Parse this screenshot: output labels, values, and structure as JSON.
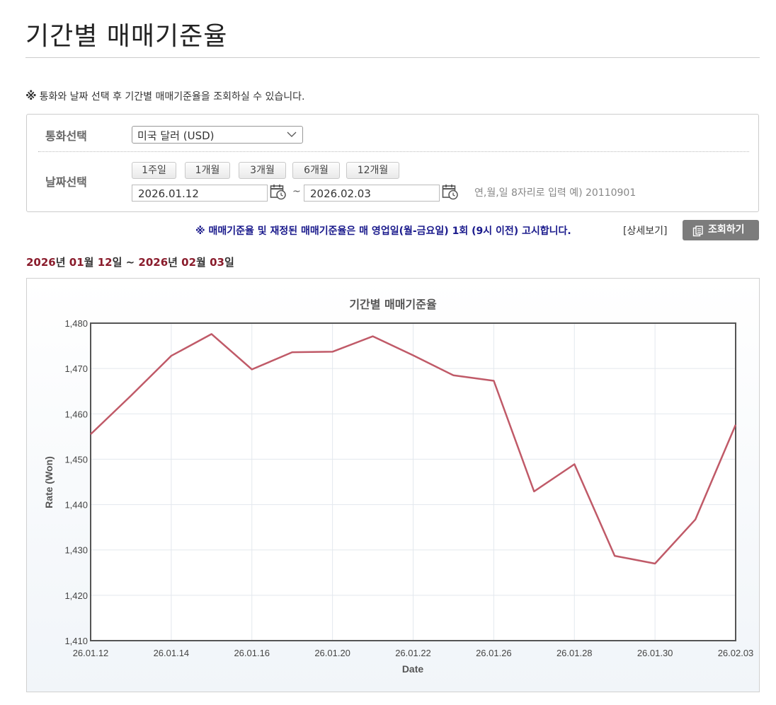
{
  "page": {
    "title": "기간별 매매기준율",
    "notice_mark": "※",
    "notice": "통화와 날짜 선택 후 기간별 매매기준율을 조회하실 수 있습니다."
  },
  "filter": {
    "currency_label": "통화선택",
    "currency_value": "미국 달러 (USD)",
    "date_label": "날짜선택",
    "period_buttons": [
      "1주일",
      "1개월",
      "3개월",
      "6개월",
      "12개월"
    ],
    "start_date": "2026.01.12",
    "end_date": "2026.02.03",
    "separator": "~",
    "date_hint": "연,월,일 8자리로 입력 예) 20110901"
  },
  "publish_note": "※ 매매기준율 및 재정된 매매기준율은 매 영업일(월-금요일) 1회 (9시 이전) 고시합니다.",
  "detail_link": "[상세보기]",
  "search_button": "조회하기",
  "range": {
    "y1": "2026",
    "s1": "년 ",
    "m1": "01",
    "s2": "월 ",
    "d1": "12",
    "s3": "일 ~ ",
    "y2": "2026",
    "s4": "년 ",
    "m2": "02",
    "s5": "월 ",
    "d2": "03",
    "s6": "일"
  },
  "colors": {
    "line": "#c05a68",
    "accent_text": "#8a1c2c",
    "notice_blue": "#1a1a8c"
  },
  "chart_data": {
    "type": "line",
    "title": "기간별 매매기준율",
    "xlabel": "Date",
    "ylabel": "Rate (Won)",
    "ylim": [
      1410,
      1480
    ],
    "yticks": [
      1410,
      1420,
      1430,
      1440,
      1450,
      1460,
      1470,
      1480
    ],
    "xtick_labels": [
      "26.01.12",
      "26.01.14",
      "26.01.16",
      "26.01.20",
      "26.01.22",
      "26.01.26",
      "26.01.28",
      "26.01.30",
      "26.02.03"
    ],
    "grid": true,
    "x": [
      "26.01.12",
      "26.01.13",
      "26.01.14",
      "26.01.15",
      "26.01.16",
      "26.01.19",
      "26.01.20",
      "26.01.21",
      "26.01.22",
      "26.01.23",
      "26.01.26",
      "26.01.27",
      "26.01.28",
      "26.01.29",
      "26.01.30",
      "26.02.02",
      "26.02.03"
    ],
    "series": [
      {
        "values": [
          1455.5,
          1464.0,
          1472.8,
          1477.6,
          1469.8,
          1473.6,
          1473.7,
          1477.1,
          1472.9,
          1468.5,
          1467.3,
          1442.9,
          1448.9,
          1428.7,
          1427.0,
          1436.7,
          1457.6
        ]
      }
    ]
  }
}
